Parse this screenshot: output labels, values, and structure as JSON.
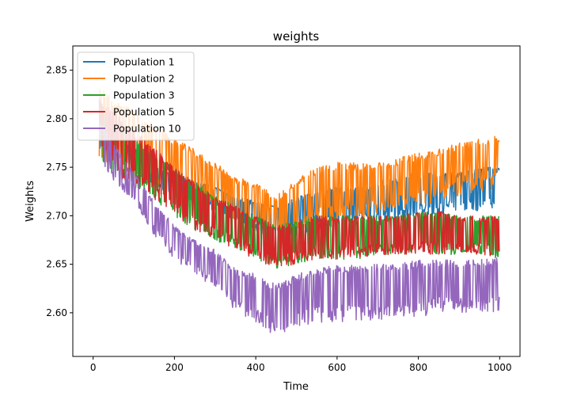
{
  "chart_data": {
    "type": "line",
    "title": "weights",
    "xlabel": "Time",
    "ylabel": "Weights",
    "xlim": [
      -50,
      1050
    ],
    "ylim": [
      2.555,
      2.875
    ],
    "xticks": [
      0,
      200,
      400,
      600,
      800,
      1000
    ],
    "yticks": [
      2.6,
      2.65,
      2.7,
      2.75,
      2.8,
      2.85
    ],
    "xtick_labels": [
      "0",
      "200",
      "400",
      "600",
      "800",
      "1000"
    ],
    "ytick_labels": [
      "2.60",
      "2.65",
      "2.70",
      "2.75",
      "2.80",
      "2.85"
    ],
    "grid": false,
    "legend_position": "top-left",
    "series": [
      {
        "name": "Population 1",
        "color": "#1f77b4",
        "x": [
          15,
          50,
          100,
          150,
          200,
          250,
          300,
          350,
          400,
          450,
          500,
          550,
          600,
          650,
          700,
          750,
          800,
          850,
          900,
          950,
          1000
        ],
        "upper": [
          2.825,
          2.79,
          2.77,
          2.75,
          2.745,
          2.735,
          2.73,
          2.72,
          2.715,
          2.71,
          2.72,
          2.725,
          2.73,
          2.73,
          2.735,
          2.74,
          2.745,
          2.745,
          2.745,
          2.75,
          2.75
        ],
        "lower": [
          2.76,
          2.755,
          2.745,
          2.73,
          2.72,
          2.71,
          2.705,
          2.695,
          2.685,
          2.675,
          2.68,
          2.685,
          2.69,
          2.69,
          2.69,
          2.695,
          2.7,
          2.7,
          2.705,
          2.705,
          2.71
        ]
      },
      {
        "name": "Population 2",
        "color": "#ff7f0e",
        "x": [
          15,
          50,
          100,
          150,
          200,
          250,
          300,
          350,
          400,
          450,
          500,
          550,
          600,
          650,
          700,
          750,
          800,
          850,
          900,
          950,
          1000
        ],
        "upper": [
          2.835,
          2.82,
          2.81,
          2.795,
          2.78,
          2.77,
          2.755,
          2.74,
          2.735,
          2.72,
          2.74,
          2.75,
          2.755,
          2.755,
          2.755,
          2.76,
          2.765,
          2.77,
          2.775,
          2.78,
          2.783
        ],
        "lower": [
          2.76,
          2.755,
          2.745,
          2.735,
          2.72,
          2.71,
          2.705,
          2.695,
          2.685,
          2.675,
          2.68,
          2.69,
          2.695,
          2.695,
          2.7,
          2.705,
          2.71,
          2.715,
          2.72,
          2.725,
          2.73
        ]
      },
      {
        "name": "Population 3",
        "color": "#2ca02c",
        "x": [
          15,
          50,
          100,
          150,
          200,
          250,
          300,
          350,
          400,
          450,
          500,
          550,
          600,
          650,
          700,
          750,
          800,
          850,
          900,
          950,
          1000
        ],
        "upper": [
          2.82,
          2.8,
          2.78,
          2.765,
          2.75,
          2.735,
          2.72,
          2.71,
          2.7,
          2.69,
          2.695,
          2.7,
          2.7,
          2.7,
          2.7,
          2.7,
          2.705,
          2.705,
          2.7,
          2.7,
          2.7
        ],
        "lower": [
          2.76,
          2.745,
          2.73,
          2.715,
          2.7,
          2.685,
          2.675,
          2.665,
          2.655,
          2.645,
          2.65,
          2.655,
          2.655,
          2.655,
          2.66,
          2.66,
          2.66,
          2.66,
          2.66,
          2.66,
          2.655
        ]
      },
      {
        "name": "Population 5",
        "color": "#d62728",
        "x": [
          15,
          50,
          100,
          150,
          200,
          250,
          300,
          350,
          400,
          450,
          500,
          550,
          600,
          650,
          700,
          750,
          800,
          850,
          900,
          950,
          1000
        ],
        "upper": [
          2.82,
          2.81,
          2.79,
          2.77,
          2.75,
          2.735,
          2.72,
          2.71,
          2.7,
          2.69,
          2.695,
          2.7,
          2.7,
          2.7,
          2.7,
          2.7,
          2.705,
          2.705,
          2.7,
          2.7,
          2.7
        ],
        "lower": [
          2.76,
          2.745,
          2.73,
          2.715,
          2.7,
          2.685,
          2.675,
          2.665,
          2.655,
          2.645,
          2.65,
          2.655,
          2.655,
          2.655,
          2.66,
          2.66,
          2.66,
          2.66,
          2.66,
          2.66,
          2.655
        ]
      },
      {
        "name": "Population 10",
        "color": "#9467bd",
        "x": [
          15,
          50,
          100,
          150,
          200,
          250,
          300,
          350,
          400,
          450,
          500,
          550,
          600,
          650,
          700,
          750,
          800,
          850,
          900,
          950,
          1000
        ],
        "upper": [
          2.8,
          2.775,
          2.745,
          2.715,
          2.69,
          2.675,
          2.665,
          2.645,
          2.64,
          2.63,
          2.64,
          2.645,
          2.65,
          2.65,
          2.65,
          2.65,
          2.655,
          2.655,
          2.655,
          2.655,
          2.657
        ],
        "lower": [
          2.76,
          2.735,
          2.715,
          2.68,
          2.655,
          2.64,
          2.625,
          2.6,
          2.59,
          2.575,
          2.585,
          2.59,
          2.59,
          2.59,
          2.59,
          2.595,
          2.595,
          2.6,
          2.6,
          2.6,
          2.6
        ]
      }
    ]
  }
}
